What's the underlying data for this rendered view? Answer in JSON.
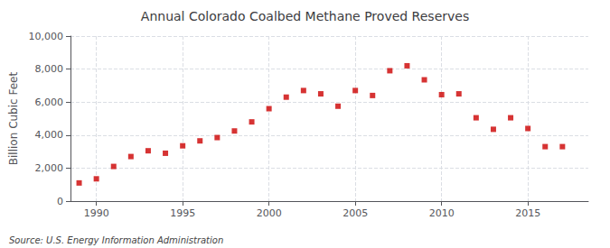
{
  "chart_data": {
    "type": "scatter",
    "title": "Annual Colorado Coalbed Methane Proved Reserves",
    "ylabel": "Billion Cubic Feet",
    "annotations": [
      "Source: U.S. Energy Information Administration"
    ],
    "x": [
      1989,
      1990,
      1991,
      1992,
      1993,
      1994,
      1995,
      1996,
      1997,
      1998,
      1999,
      2000,
      2001,
      2002,
      2003,
      2004,
      2005,
      2006,
      2007,
      2008,
      2009,
      2010,
      2011,
      2012,
      2013,
      2014,
      2015,
      2016,
      2017
    ],
    "values": [
      1100,
      1350,
      2100,
      2700,
      3050,
      2900,
      3350,
      3650,
      3850,
      4250,
      4800,
      5600,
      6300,
      6700,
      6500,
      5750,
      6700,
      6400,
      7900,
      8200,
      7350,
      6450,
      6500,
      5050,
      4350,
      5050,
      4400,
      3300,
      3300
    ],
    "color": "#cc0000",
    "marker": "square",
    "xlim": [
      1988.5,
      2018.5
    ],
    "xticks": [
      1990,
      1995,
      2000,
      2005,
      2010,
      2015
    ],
    "ylim": [
      0,
      10000
    ],
    "yticks": [
      0,
      {
        "value": 2000,
        "label": "2,000"
      },
      {
        "value": 4000,
        "label": "4,000"
      },
      {
        "value": 6000,
        "label": "6,000"
      },
      {
        "value": 8000,
        "label": "8,000"
      },
      {
        "value": 10000,
        "label": "10,000"
      }
    ],
    "grid": true
  }
}
